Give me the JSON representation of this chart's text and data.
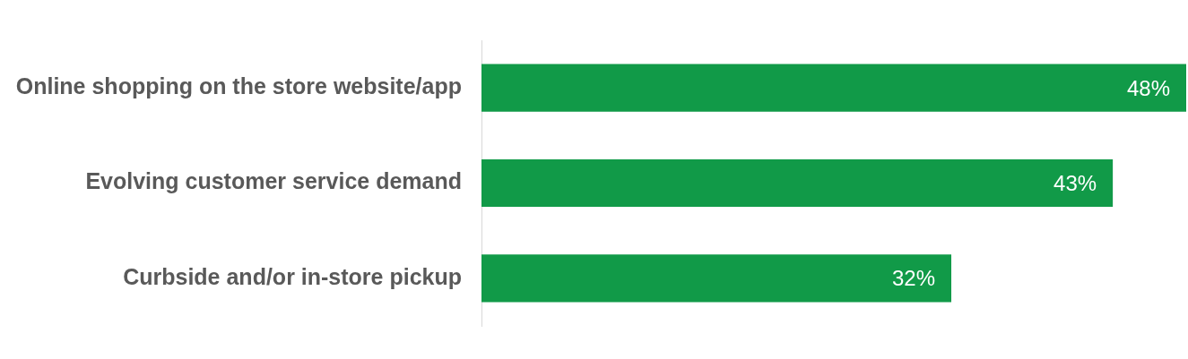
{
  "chart_data": {
    "type": "bar",
    "orientation": "horizontal",
    "categories": [
      "Online shopping on the store website/app",
      "Evolving customer service demand",
      "Curbside and/or in-store pickup"
    ],
    "values": [
      48,
      43,
      32
    ],
    "value_labels": [
      "48%",
      "43%",
      "32%"
    ],
    "color": "#119a48",
    "grid": false,
    "legend": false,
    "tick_labels": "y"
  }
}
